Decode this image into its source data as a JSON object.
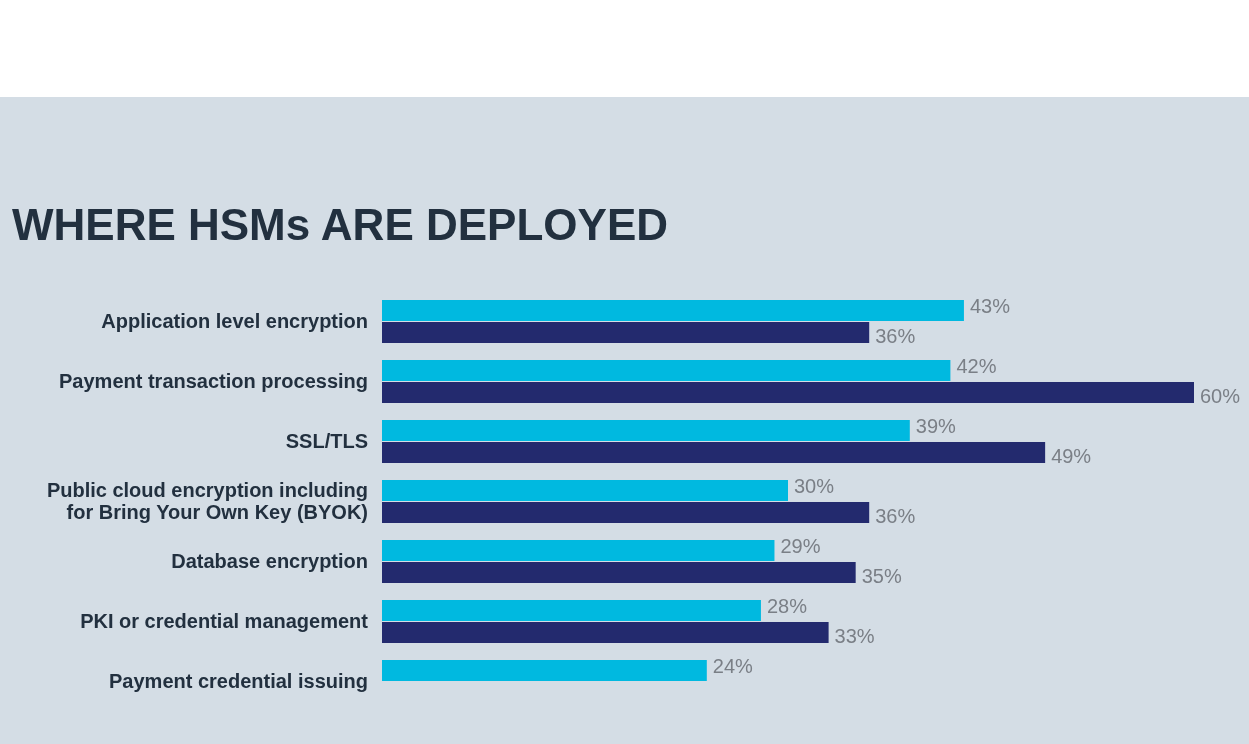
{
  "chart_data": {
    "type": "bar",
    "orientation": "horizontal",
    "title": "WHERE HSMs ARE DEPLOYED",
    "categories": [
      "Application level encryption",
      "Payment transaction processing",
      "SSL/TLS",
      "Public cloud encryption including for Bring Your Own Key (BYOK)",
      "Database encryption",
      "PKI or credential management",
      "Payment credential issuing"
    ],
    "series": [
      {
        "color": "#00b9e0",
        "values": [
          43,
          42,
          39,
          30,
          29,
          28,
          24
        ],
        "value_labels": [
          "43%",
          "42%",
          "39%",
          "30%",
          "29%",
          "28%",
          "24%"
        ]
      },
      {
        "color": "#232a6e",
        "values": [
          36,
          60,
          49,
          36,
          35,
          33,
          null
        ],
        "value_labels": [
          "36%",
          "60%",
          "49%",
          "36%",
          "35%",
          "33%",
          null
        ]
      }
    ]
  }
}
